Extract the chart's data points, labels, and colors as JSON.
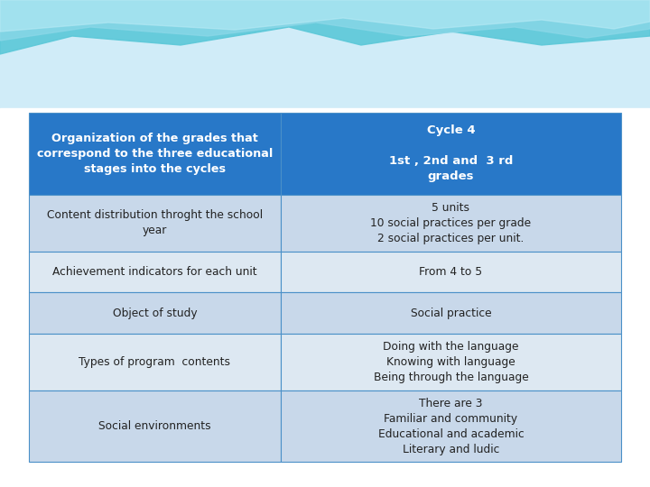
{
  "header_bg": "#2878c8",
  "header_text_color": "#ffffff",
  "row_bg_dark": "#c5d5e8",
  "row_bg_light": "#dde6f0",
  "border_color": "#4a90c8",
  "bg_color": "#ffffff",
  "wave_color1": "#7dd4f0",
  "wave_color2": "#a8e0f0",
  "wave_color3": "#c8eef8",
  "col1_header": "Organization of the grades that\ncorrespond to the three educational\nstages into the cycles",
  "col2_header_line1": "Cycle 4",
  "col2_header_line2": "1st , 2nd and  3 rd\ngrades",
  "rows": [
    {
      "col1": "Content distribution throght the school\nyear",
      "col2": "5 units\n10 social practices per grade\n2 social practices per unit.",
      "bg": "#c8d8ea"
    },
    {
      "col1": "Achievement indicators for each unit",
      "col2": "From 4 to 5",
      "bg": "#dde8f2"
    },
    {
      "col1": "Object of study",
      "col2": "Social practice",
      "bg": "#c8d8ea"
    },
    {
      "col1": "Types of program  contents",
      "col2": "Doing with the language\nKnowing with language\nBeing through the language",
      "bg": "#dde8f2"
    },
    {
      "col1": "Social environments",
      "col2": "There are 3\nFamiliar and community\nEducational and academic\nLiterary and ludic",
      "bg": "#c8d8ea"
    }
  ],
  "figsize": [
    7.2,
    5.4
  ],
  "dpi": 100
}
